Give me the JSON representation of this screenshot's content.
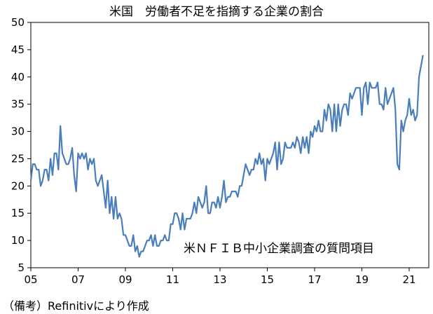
{
  "title": "米国　労働者不足を指摘する企業の割合",
  "annotation": "米ＮＦＩＢ中小企業調査の質問項目",
  "source_note": "（備考）Refinitivにより作成",
  "colors": {
    "line": "#4a7ebb",
    "axis": "#000000"
  },
  "chart_data": {
    "type": "line",
    "title": "米国　労働者不足を指摘する企業の割合",
    "xlabel": "",
    "ylabel": "",
    "ylim": [
      5,
      50
    ],
    "xlim": [
      2005.0,
      2021.83
    ],
    "yticks": [
      5,
      10,
      15,
      20,
      25,
      30,
      35,
      40,
      45,
      50
    ],
    "xtick_labels": [
      "05",
      "07",
      "09",
      "11",
      "13",
      "15",
      "17",
      "19",
      "21"
    ],
    "xtick_values": [
      2005,
      2007,
      2009,
      2011,
      2013,
      2015,
      2017,
      2019,
      2021
    ],
    "grid": false,
    "legend": "none",
    "series": [
      {
        "frequency": "monthly",
        "start": "2005-01",
        "values": [
          21,
          24,
          24,
          23,
          23,
          20,
          21,
          23,
          23,
          21,
          25,
          22,
          26,
          26,
          23,
          31,
          26,
          25,
          24,
          24,
          25,
          27,
          22,
          19,
          26,
          25,
          26,
          25,
          26,
          23,
          25,
          24,
          25,
          21,
          20,
          21,
          22,
          19,
          16,
          21,
          15,
          18,
          14,
          18,
          14,
          15,
          14,
          11,
          11,
          10,
          9,
          9,
          11,
          8,
          9,
          7,
          8,
          8,
          9,
          10,
          10,
          11,
          9,
          11,
          9,
          9,
          10,
          10,
          11,
          10,
          10,
          13,
          13,
          15,
          15,
          14,
          12,
          15,
          12,
          14,
          14,
          14,
          15,
          17,
          15,
          18,
          17,
          16,
          17,
          20,
          15,
          15,
          17,
          17,
          16,
          18,
          16,
          18,
          21,
          17,
          18,
          18,
          19,
          19,
          19,
          18,
          20,
          20,
          22,
          24,
          23,
          22,
          23,
          23,
          25,
          24,
          26,
          24,
          25,
          21,
          25,
          24,
          25,
          26,
          28,
          23,
          28,
          24,
          25,
          28,
          27,
          27,
          27,
          28,
          27,
          29,
          28,
          26,
          29,
          27,
          29,
          26,
          30,
          29,
          31,
          30,
          32,
          30,
          30,
          34,
          32,
          35,
          34,
          30,
          35,
          30,
          35,
          31,
          34,
          35,
          35,
          33,
          37,
          36,
          37,
          38,
          38,
          38,
          33,
          38,
          39,
          35,
          39,
          38,
          38,
          38,
          39,
          35,
          35,
          34,
          38,
          35,
          36,
          37,
          38,
          34,
          24,
          23,
          32,
          30,
          32,
          33,
          36,
          33,
          34,
          32,
          33,
          40,
          42,
          44
        ]
      }
    ]
  }
}
